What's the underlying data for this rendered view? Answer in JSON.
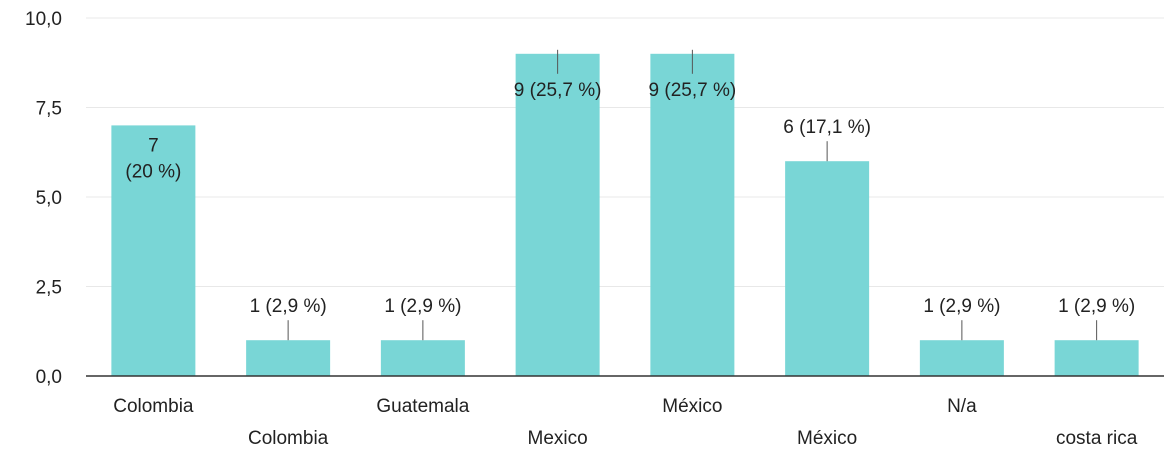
{
  "chart_data": {
    "type": "bar",
    "categories": [
      "Colombia",
      "Colombia",
      "Guatemala",
      "Mexico",
      "México",
      "México",
      "N/a",
      "costa rica"
    ],
    "values": [
      7,
      1,
      1,
      9,
      9,
      6,
      1,
      1
    ],
    "data_labels": [
      "7 (20 %)",
      "1 (2,9 %)",
      "1 (2,9 %)",
      "9 (25,7 %)",
      "9 (25,7 %)",
      "6 (17,1 %)",
      "1 (2,9 %)",
      "1 (2,9 %)"
    ],
    "ylim": [
      0,
      10
    ],
    "yticks": [
      "0,0",
      "2,5",
      "5,0",
      "7,5",
      "10,0"
    ],
    "grid": true,
    "bar_color": "#79d6d6"
  }
}
